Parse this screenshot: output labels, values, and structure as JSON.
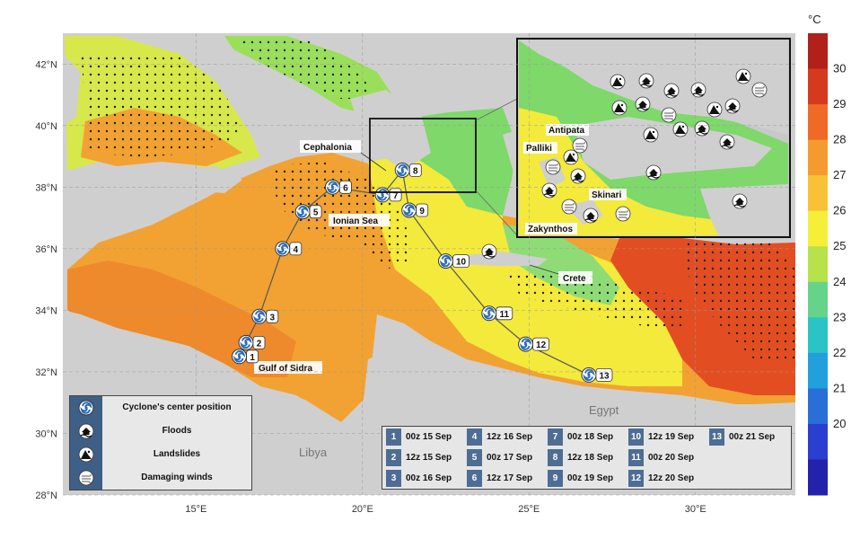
{
  "colorbar": {
    "unit": "°C",
    "ticks": [
      "30",
      "29",
      "28",
      "27",
      "26",
      "25",
      "24",
      "23",
      "22",
      "21",
      "20"
    ],
    "colors": [
      "#b2201a",
      "#d63a1e",
      "#ee6a26",
      "#f59a2f",
      "#f7c236",
      "#f5ef3a",
      "#b8e24b",
      "#66d38a",
      "#2bc4c4",
      "#21a0dc",
      "#2a6fd8",
      "#2a3fd0",
      "#2222aa"
    ]
  },
  "axes": {
    "lat_labels": [
      "42°N",
      "40°N",
      "38°N",
      "36°N",
      "34°N",
      "32°N",
      "30°N",
      "28°N"
    ],
    "lon_labels": [
      "15°E",
      "20°E",
      "25°E",
      "30°E"
    ]
  },
  "places": {
    "cephalonia": "Cephalonia",
    "ionian_sea": "Ionian Sea",
    "crete": "Crete",
    "gulf_of_sidra": "Gulf of Sidra",
    "libya": "Libya",
    "egypt": "Egypt",
    "antipata": "Antipata",
    "palliki": "Palliki",
    "skinari": "Skinari",
    "zakynthos": "Zakynthos"
  },
  "track": {
    "points": [
      {
        "n": "1",
        "lon": 16.3,
        "lat": 32.5
      },
      {
        "n": "2",
        "lon": 16.5,
        "lat": 32.95
      },
      {
        "n": "3",
        "lon": 16.9,
        "lat": 33.8
      },
      {
        "n": "4",
        "lon": 17.6,
        "lat": 36.0
      },
      {
        "n": "5",
        "lon": 18.2,
        "lat": 37.2
      },
      {
        "n": "6",
        "lon": 19.1,
        "lat": 38.0
      },
      {
        "n": "7",
        "lon": 20.6,
        "lat": 37.75
      },
      {
        "n": "8",
        "lon": 21.2,
        "lat": 38.55
      },
      {
        "n": "9",
        "lon": 21.4,
        "lat": 37.25
      },
      {
        "n": "10",
        "lon": 22.5,
        "lat": 35.6
      },
      {
        "n": "11",
        "lon": 23.8,
        "lat": 33.9
      },
      {
        "n": "12",
        "lon": 24.9,
        "lat": 32.9
      },
      {
        "n": "13",
        "lon": 26.8,
        "lat": 31.9
      }
    ]
  },
  "legend": {
    "items": [
      {
        "icon": "cyclone-icon",
        "label": "Cyclone's center position"
      },
      {
        "icon": "flood-icon",
        "label": "Floods"
      },
      {
        "icon": "landslide-icon",
        "label": "Landslides"
      },
      {
        "icon": "wind-icon",
        "label": "Damaging winds"
      }
    ]
  },
  "times": [
    {
      "n": "1",
      "t": "00z 15 Sep"
    },
    {
      "n": "2",
      "t": "12z 15 Sep"
    },
    {
      "n": "3",
      "t": "00z 16 Sep"
    },
    {
      "n": "4",
      "t": "12z 16 Sep"
    },
    {
      "n": "5",
      "t": "00z 17 Sep"
    },
    {
      "n": "6",
      "t": "12z 17 Sep"
    },
    {
      "n": "7",
      "t": "00z 18 Sep"
    },
    {
      "n": "8",
      "t": "12z 18 Sep"
    },
    {
      "n": "9",
      "t": "00z 19 Sep"
    },
    {
      "n": "10",
      "t": "12z 19 Sep"
    },
    {
      "n": "11",
      "t": "00z 20 Sep"
    },
    {
      "n": "12",
      "t": "12z 20 Sep"
    },
    {
      "n": "13",
      "t": "00z 21 Sep"
    }
  ]
}
